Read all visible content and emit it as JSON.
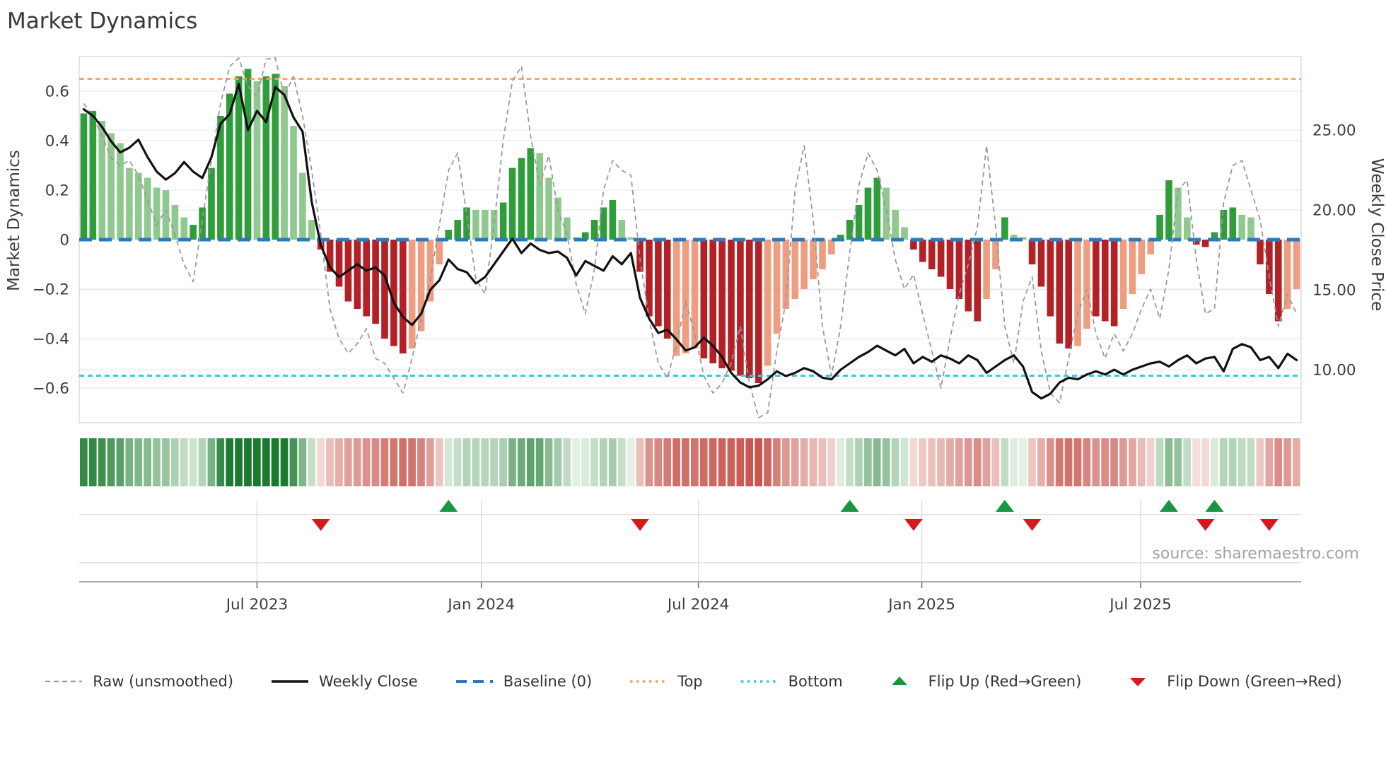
{
  "title": "Market Dynamics",
  "source": "source: sharemaestro.com",
  "axes": {
    "left_label": "Market Dynamics",
    "right_label": "Weekly Close Price",
    "left_ticks": [
      {
        "label": "0.6",
        "value": 0.6
      },
      {
        "label": "0.4",
        "value": 0.4
      },
      {
        "label": "0.2",
        "value": 0.2
      },
      {
        "label": "0",
        "value": 0.0
      },
      {
        "label": "−0.2",
        "value": -0.2
      },
      {
        "label": "−0.4",
        "value": -0.4
      },
      {
        "label": "−0.6",
        "value": -0.6
      }
    ],
    "right_ticks": [
      {
        "label": "25.00",
        "value": 25
      },
      {
        "label": "20.00",
        "value": 20
      },
      {
        "label": "15.00",
        "value": 15
      },
      {
        "label": "10.00",
        "value": 10
      }
    ],
    "x_ticks": [
      {
        "label": "Jul 2023",
        "week": 19.0
      },
      {
        "label": "Jan 2024",
        "week": 43.6
      },
      {
        "label": "Jul 2024",
        "week": 67.4
      },
      {
        "label": "Jan 2025",
        "week": 91.9
      },
      {
        "label": "Jul 2025",
        "week": 115.9
      }
    ]
  },
  "colors": {
    "bar_green_dark": "#2e9d3a",
    "bar_green_light": "#8fc98f",
    "bar_red_dark": "#b32025",
    "bar_red_light": "#ee9e80",
    "line_close": "#111111",
    "line_raw": "#999999",
    "baseline": "#2b7bba",
    "top_line": "#f5a35e",
    "bottom_line": "#41c6de",
    "flip_up": "#1a9641",
    "flip_down": "#d7191c",
    "grid": "#eaeaf1",
    "spine": "#d5d5de",
    "panel_grid": "#d8d8de",
    "panel_axis": "#9aa0a6",
    "heat_green_max": "#1a7a2e",
    "heat_green_min": "#eaf4ea",
    "heat_red_max": "#c6524a",
    "heat_red_min": "#f7e6e3"
  },
  "legend": {
    "items": [
      {
        "name": "legend-raw",
        "label": "Raw (unsmoothed)",
        "swatch": "dashed-line",
        "color": "#999999"
      },
      {
        "name": "legend-weekly-close",
        "label": "Weekly Close",
        "swatch": "solid-line",
        "color": "#111111"
      },
      {
        "name": "legend-baseline",
        "label": "Baseline (0)",
        "swatch": "long-dash",
        "color": "#2b7bba"
      },
      {
        "name": "legend-top",
        "label": "Top",
        "swatch": "dotted-line",
        "color": "#f5a35e"
      },
      {
        "name": "legend-bottom",
        "label": "Bottom",
        "swatch": "dotted-line",
        "color": "#41c6de"
      },
      {
        "name": "legend-flip-up",
        "label": "Flip Up (Red→Green)",
        "swatch": "triangle-up",
        "color": "#1a9641"
      },
      {
        "name": "legend-flip-down",
        "label": "Flip Down (Green→Red)",
        "swatch": "triangle-down",
        "color": "#d7191c"
      }
    ]
  },
  "chart_data": {
    "type": "bar",
    "x_unit": "week",
    "n_weeks": 134,
    "left_axis_range": [
      -0.74,
      0.74
    ],
    "right_axis_range": [
      6.8,
      29.8
    ],
    "baseline": 0,
    "top": 0.65,
    "bottom": -0.55,
    "oscillator": {
      "values": [
        0.51,
        0.52,
        0.48,
        0.43,
        0.39,
        0.29,
        0.27,
        0.25,
        0.21,
        0.2,
        0.14,
        0.09,
        0.06,
        0.13,
        0.29,
        0.5,
        0.59,
        0.66,
        0.69,
        0.64,
        0.66,
        0.67,
        0.62,
        0.46,
        0.27,
        0.08,
        -0.04,
        -0.13,
        -0.19,
        -0.25,
        -0.28,
        -0.31,
        -0.34,
        -0.4,
        -0.43,
        -0.46,
        -0.44,
        -0.37,
        -0.25,
        -0.1,
        0.04,
        0.08,
        0.13,
        0.12,
        0.12,
        0.12,
        0.15,
        0.29,
        0.33,
        0.37,
        0.35,
        0.25,
        0.17,
        0.09,
        0.01,
        0.03,
        0.08,
        0.13,
        0.16,
        0.08,
        0.01,
        -0.13,
        -0.31,
        -0.35,
        -0.4,
        -0.47,
        -0.46,
        -0.44,
        -0.48,
        -0.5,
        -0.52,
        -0.53,
        -0.55,
        -0.56,
        -0.58,
        -0.51,
        -0.38,
        -0.28,
        -0.24,
        -0.2,
        -0.16,
        -0.12,
        -0.06,
        0.02,
        0.08,
        0.14,
        0.21,
        0.25,
        0.21,
        0.12,
        0.05,
        -0.04,
        -0.09,
        -0.12,
        -0.15,
        -0.2,
        -0.24,
        -0.29,
        -0.33,
        -0.24,
        -0.12,
        0.09,
        0.02,
        0.01,
        -0.1,
        -0.19,
        -0.31,
        -0.42,
        -0.44,
        -0.43,
        -0.36,
        -0.31,
        -0.33,
        -0.35,
        -0.28,
        -0.22,
        -0.14,
        -0.06,
        0.1,
        0.24,
        0.21,
        0.09,
        -0.02,
        -0.03,
        0.03,
        0.12,
        0.13,
        0.1,
        0.09,
        -0.1,
        -0.22,
        -0.33,
        -0.28,
        -0.2
      ],
      "dark": [
        1,
        1,
        0,
        0,
        0,
        0,
        0,
        0,
        0,
        0,
        0,
        0,
        1,
        1,
        1,
        1,
        1,
        1,
        1,
        0,
        1,
        1,
        0,
        0,
        0,
        0,
        1,
        1,
        1,
        1,
        1,
        1,
        1,
        1,
        1,
        1,
        0,
        0,
        0,
        0,
        1,
        1,
        1,
        0,
        0,
        0,
        1,
        1,
        1,
        1,
        0,
        0,
        0,
        0,
        0,
        1,
        1,
        1,
        1,
        0,
        0,
        1,
        1,
        1,
        1,
        0,
        0,
        0,
        1,
        1,
        1,
        1,
        1,
        1,
        1,
        0,
        0,
        0,
        0,
        0,
        0,
        0,
        0,
        1,
        1,
        1,
        1,
        1,
        0,
        0,
        0,
        1,
        1,
        1,
        1,
        1,
        1,
        1,
        1,
        0,
        0,
        1,
        0,
        0,
        1,
        1,
        1,
        1,
        1,
        0,
        0,
        1,
        1,
        1,
        0,
        0,
        0,
        0,
        1,
        1,
        0,
        0,
        1,
        1,
        1,
        1,
        1,
        0,
        0,
        1,
        1,
        1,
        0,
        0
      ]
    },
    "raw": [
      0.55,
      0.5,
      0.42,
      0.33,
      0.3,
      0.32,
      0.26,
      0.16,
      0.06,
      0.12,
      0.02,
      -0.1,
      -0.17,
      0.08,
      0.32,
      0.55,
      0.7,
      0.74,
      0.62,
      0.58,
      0.73,
      0.75,
      0.58,
      0.66,
      0.5,
      0.28,
      0.02,
      -0.28,
      -0.4,
      -0.46,
      -0.42,
      -0.36,
      -0.48,
      -0.5,
      -0.56,
      -0.62,
      -0.48,
      -0.32,
      -0.16,
      0.06,
      0.28,
      0.35,
      0.1,
      -0.16,
      -0.22,
      0.06,
      0.4,
      0.64,
      0.7,
      0.42,
      0.22,
      0.34,
      0.12,
      0.02,
      -0.18,
      -0.3,
      -0.12,
      0.2,
      0.32,
      0.28,
      0.26,
      -0.08,
      -0.32,
      -0.5,
      -0.56,
      -0.42,
      -0.25,
      -0.38,
      -0.55,
      -0.62,
      -0.58,
      -0.5,
      -0.35,
      -0.58,
      -0.72,
      -0.7,
      -0.45,
      -0.25,
      0.2,
      0.38,
      0.08,
      -0.35,
      -0.55,
      -0.35,
      -0.05,
      0.22,
      0.35,
      0.28,
      0.12,
      -0.08,
      -0.2,
      -0.14,
      -0.3,
      -0.45,
      -0.6,
      -0.4,
      -0.22,
      -0.1,
      0.05,
      0.38,
      0.05,
      -0.35,
      -0.5,
      -0.25,
      -0.15,
      -0.45,
      -0.62,
      -0.66,
      -0.48,
      -0.3,
      -0.2,
      -0.38,
      -0.48,
      -0.38,
      -0.45,
      -0.38,
      -0.28,
      -0.2,
      -0.32,
      -0.12,
      0.2,
      0.24,
      -0.08,
      -0.3,
      -0.28,
      0.15,
      0.3,
      0.32,
      0.2,
      0.08,
      -0.15,
      -0.35,
      -0.22,
      -0.3
    ],
    "weekly_close": [
      26.3,
      25.9,
      25.2,
      24.3,
      23.6,
      23.9,
      24.4,
      23.3,
      22.4,
      21.9,
      22.3,
      23.0,
      22.4,
      22.0,
      23.3,
      25.4,
      26.0,
      27.9,
      25.0,
      26.2,
      25.5,
      27.7,
      27.2,
      25.8,
      24.9,
      20.5,
      17.8,
      16.4,
      15.8,
      16.2,
      16.6,
      16.2,
      16.4,
      15.9,
      14.2,
      13.3,
      12.8,
      13.5,
      15.0,
      15.6,
      16.9,
      16.3,
      16.1,
      15.4,
      15.8,
      16.6,
      17.4,
      18.2,
      17.3,
      17.9,
      17.5,
      17.3,
      17.4,
      17.0,
      15.9,
      16.8,
      16.5,
      16.2,
      17.1,
      16.6,
      17.3,
      14.5,
      13.2,
      12.3,
      12.5,
      11.9,
      11.2,
      11.4,
      12.0,
      11.5,
      10.8,
      9.8,
      9.2,
      8.9,
      9.0,
      9.4,
      9.9,
      9.6,
      9.8,
      10.1,
      9.9,
      9.5,
      9.4,
      10.0,
      10.4,
      10.8,
      11.1,
      11.5,
      11.2,
      10.9,
      11.3,
      10.4,
      10.8,
      10.5,
      10.9,
      10.7,
      10.4,
      10.9,
      10.6,
      9.8,
      10.2,
      10.6,
      10.9,
      10.2,
      8.6,
      8.2,
      8.5,
      9.2,
      9.5,
      9.4,
      9.7,
      9.9,
      9.7,
      10.0,
      9.7,
      10.0,
      10.2,
      10.4,
      10.5,
      10.2,
      10.6,
      10.9,
      10.4,
      10.7,
      10.8,
      9.9,
      11.3,
      11.6,
      11.4,
      10.6,
      10.8,
      10.1,
      11.0,
      10.6
    ],
    "flip_up_weeks": [
      40,
      84,
      101,
      119,
      124
    ],
    "flip_down_weeks": [
      26,
      61,
      91,
      104,
      123,
      130
    ],
    "grid": "on",
    "legend_position": "bottom"
  }
}
